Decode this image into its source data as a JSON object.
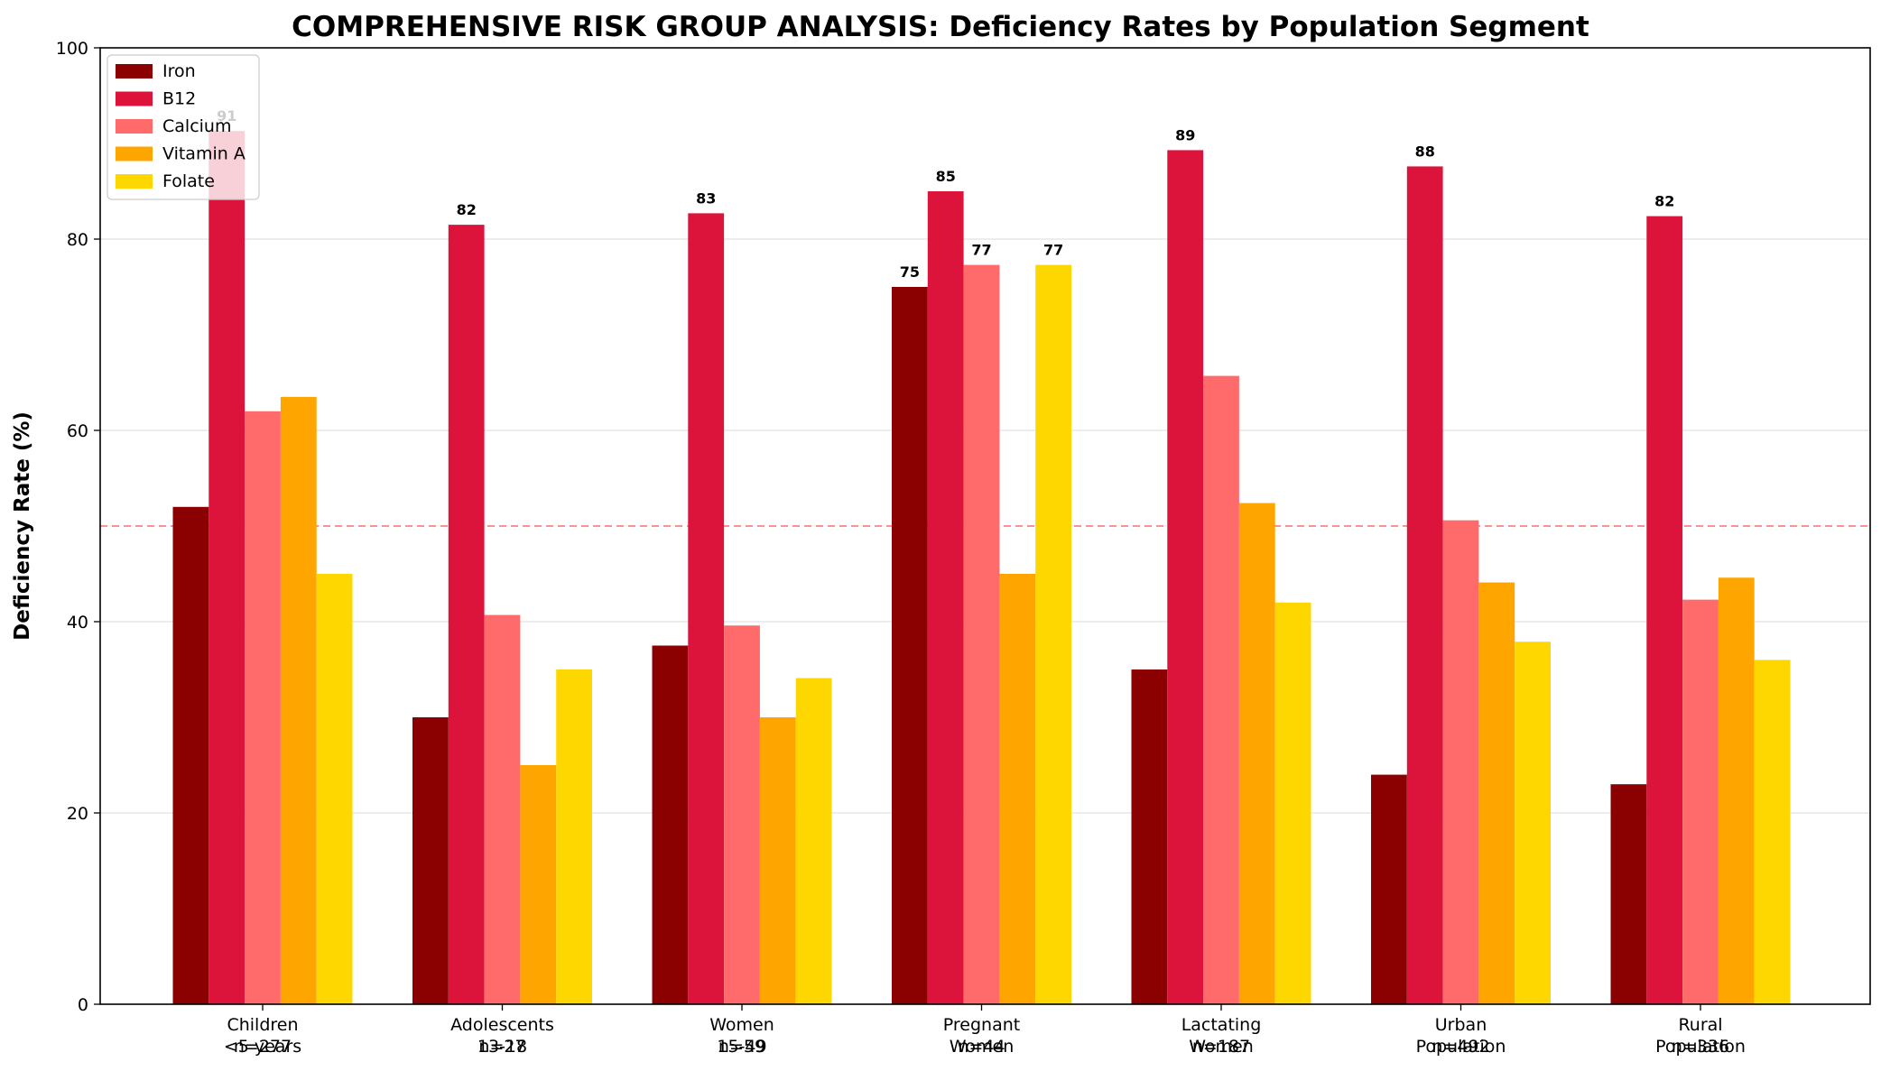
{
  "chart_data": {
    "type": "bar",
    "title": "COMPREHENSIVE RISK GROUP ANALYSIS: Deficiency Rates by Population Segment",
    "xlabel": "",
    "ylabel": "Deficiency Rate (%)",
    "ylim": [
      0,
      100
    ],
    "yticks": [
      "0",
      "20",
      "40",
      "60",
      "80",
      "100"
    ],
    "grid": "horizontal",
    "legend": "top-left",
    "reference_line": {
      "y": 50,
      "color": "#ff6b6b",
      "style": "dashed"
    },
    "categories": [
      {
        "line1": "Children",
        "line2": "<5 years",
        "line3": "n=277"
      },
      {
        "line1": "Adolescents",
        "line2": "13-18",
        "line3": "n=27"
      },
      {
        "line1": "Women",
        "line2": "15-49",
        "line3": "n=59"
      },
      {
        "line1": "Pregnant",
        "line2": "Women",
        "line3": "n=44"
      },
      {
        "line1": "Lactating",
        "line2": "Women",
        "line3": "n=187"
      },
      {
        "line1": "Urban",
        "line2": "Population",
        "line3": "n=492"
      },
      {
        "line1": "Rural",
        "line2": "Population",
        "line3": "n=336"
      }
    ],
    "series": [
      {
        "name": "Iron",
        "color": "#8b0000",
        "values": [
          52,
          30,
          37.5,
          75,
          35,
          24,
          23
        ]
      },
      {
        "name": "B12",
        "color": "#dc143c",
        "values": [
          91.3,
          81.5,
          82.7,
          85,
          89.3,
          87.6,
          82.4
        ]
      },
      {
        "name": "Calcium",
        "color": "#ff6b6b",
        "values": [
          62,
          40.7,
          39.6,
          77.3,
          65.7,
          50.6,
          42.3
        ]
      },
      {
        "name": "Vitamin A",
        "color": "#ffa500",
        "values": [
          63.5,
          25,
          30,
          45,
          52.4,
          44.1,
          44.6
        ]
      },
      {
        "name": "Folate",
        "color": "#ffd700",
        "values": [
          45,
          35,
          34.1,
          77.3,
          42,
          37.9,
          36
        ]
      }
    ],
    "value_labels": [
      {
        "group": 0,
        "series": 1,
        "text": "91"
      },
      {
        "group": 1,
        "series": 1,
        "text": "82"
      },
      {
        "group": 2,
        "series": 1,
        "text": "83"
      },
      {
        "group": 3,
        "series": 0,
        "text": "75"
      },
      {
        "group": 3,
        "series": 1,
        "text": "85"
      },
      {
        "group": 3,
        "series": 2,
        "text": "77"
      },
      {
        "group": 3,
        "series": 4,
        "text": "77"
      },
      {
        "group": 4,
        "series": 1,
        "text": "89"
      },
      {
        "group": 5,
        "series": 1,
        "text": "88"
      },
      {
        "group": 6,
        "series": 1,
        "text": "82"
      }
    ]
  }
}
